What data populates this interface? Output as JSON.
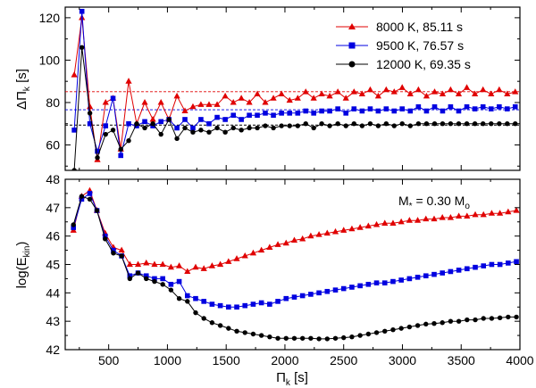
{
  "chart_data": [
    {
      "type": "line",
      "panel": "top",
      "ylabel": "ΔΠk [s]",
      "ylabel_main": "ΔΠ",
      "ylabel_sub": "k",
      "ylabel_unit": " [s]",
      "xlim": [
        130,
        4000
      ],
      "ylim": [
        48,
        125
      ],
      "yticks": [
        60,
        80,
        100,
        120
      ],
      "x": [
        207,
        272,
        340,
        404,
        474,
        537,
        603,
        670,
        738,
        807,
        876,
        945,
        1013,
        1081,
        1149,
        1217,
        1285,
        1354,
        1423,
        1492,
        1561,
        1629,
        1697,
        1765,
        1833,
        1902,
        1971,
        2040,
        2109,
        2177,
        2245,
        2313,
        2381,
        2450,
        2519,
        2588,
        2657,
        2726,
        2794,
        2862,
        2930,
        2998,
        3067,
        3136,
        3205,
        3274,
        3342,
        3410,
        3479,
        3548,
        3617,
        3686,
        3755,
        3824,
        3892,
        3960
      ],
      "series": [
        {
          "name": "8000 K, 85.11 s",
          "legend_label": "8000 K, 85.11 s",
          "color": "#e00000",
          "marker": "triangle",
          "mean": 85.11,
          "values": [
            93,
            120,
            78,
            53,
            80,
            82,
            58,
            90,
            70,
            80,
            72,
            80,
            72,
            83,
            76,
            78,
            79,
            79,
            79,
            83,
            80,
            82,
            80,
            84,
            80,
            82,
            84,
            81,
            82,
            85,
            82,
            84,
            83,
            85,
            82,
            85,
            84,
            86,
            83,
            86,
            85,
            87,
            84,
            86,
            83,
            85,
            84,
            86,
            84,
            87,
            84,
            86,
            84,
            86,
            84,
            85
          ]
        },
        {
          "name": "9500 K, 76.57 s",
          "legend_label": "9500 K, 76.57 s",
          "color": "#0000e0",
          "marker": "square",
          "mean": 76.57,
          "values": [
            67,
            123,
            70,
            57,
            69,
            82,
            55,
            70,
            69,
            71,
            69,
            71,
            72,
            68,
            72,
            68,
            72,
            70,
            73,
            72,
            74,
            72,
            74,
            74,
            75,
            74,
            75,
            75,
            75,
            76,
            75,
            76,
            76,
            77,
            75,
            77,
            76,
            77,
            76,
            77,
            76,
            77,
            76,
            78,
            76,
            78,
            76,
            78,
            76,
            78,
            77,
            78,
            77,
            78,
            77,
            78
          ]
        },
        {
          "name": "12000 K, 69.35 s",
          "legend_label": "12000 K, 69.35 s",
          "color": "#000000",
          "marker": "circle",
          "mean": 69.35,
          "values": [
            48,
            106,
            75,
            54,
            65,
            67,
            58,
            62,
            70,
            68,
            70,
            65,
            72,
            63,
            68,
            66,
            67,
            66,
            68,
            66,
            68,
            67,
            68,
            68,
            69,
            68,
            69,
            69,
            69,
            70,
            68,
            70,
            69,
            70,
            69,
            70,
            69,
            70,
            69,
            70,
            69,
            70,
            69,
            70,
            70,
            70,
            70,
            70,
            70,
            70,
            70,
            70,
            70,
            70,
            70,
            70
          ]
        }
      ]
    },
    {
      "type": "line",
      "panel": "bottom",
      "ylabel": "log(Ekin)",
      "ylabel_main": "log(E",
      "ylabel_sub": "kin",
      "ylabel_unit": ")",
      "xlabel": "Πk [s]",
      "xlabel_main": "Π",
      "xlabel_sub": "k",
      "xlabel_unit": " [s]",
      "xlim": [
        130,
        4000
      ],
      "ylim": [
        42,
        48
      ],
      "yticks": [
        42,
        43,
        44,
        45,
        46,
        47,
        48
      ],
      "xticks": [
        500,
        1000,
        1500,
        2000,
        2500,
        3000,
        3500,
        4000
      ],
      "annotation": "M* = 0.30 Mo",
      "annotation_main": "M",
      "annotation_sub1": "*",
      "annotation_mid": " = 0.30 M",
      "annotation_sub2": "o",
      "x": [
        200,
        270,
        339,
        400,
        470,
        540,
        610,
        680,
        750,
        820,
        890,
        960,
        1030,
        1100,
        1170,
        1240,
        1310,
        1380,
        1450,
        1520,
        1590,
        1660,
        1730,
        1800,
        1870,
        1940,
        2010,
        2080,
        2150,
        2220,
        2290,
        2360,
        2430,
        2500,
        2570,
        2640,
        2710,
        2780,
        2850,
        2920,
        2990,
        3060,
        3130,
        3200,
        3270,
        3340,
        3410,
        3480,
        3550,
        3620,
        3690,
        3760,
        3830,
        3900,
        3970
      ],
      "series": [
        {
          "name": "8000 K",
          "color": "#e00000",
          "marker": "triangle",
          "values": [
            46.2,
            47.4,
            47.6,
            46.9,
            46.1,
            45.6,
            45.5,
            45.0,
            45.0,
            45.05,
            45.0,
            45.0,
            44.9,
            44.95,
            44.75,
            44.9,
            44.85,
            44.95,
            45.0,
            45.1,
            45.2,
            45.3,
            45.4,
            45.5,
            45.6,
            45.7,
            45.75,
            45.85,
            45.9,
            46.0,
            46.05,
            46.1,
            46.15,
            46.2,
            46.25,
            46.3,
            46.35,
            46.4,
            46.45,
            46.45,
            46.5,
            46.55,
            46.55,
            46.6,
            46.6,
            46.65,
            46.65,
            46.7,
            46.7,
            46.75,
            46.75,
            46.8,
            46.8,
            46.85,
            46.9
          ]
        },
        {
          "name": "9500 K",
          "color": "#0000e0",
          "marker": "square",
          "values": [
            46.3,
            47.3,
            47.5,
            46.9,
            46.0,
            45.5,
            45.3,
            44.6,
            44.7,
            44.6,
            44.5,
            44.5,
            44.3,
            44.4,
            43.9,
            43.8,
            43.7,
            43.6,
            43.55,
            43.5,
            43.5,
            43.55,
            43.6,
            43.65,
            43.6,
            43.7,
            43.8,
            43.85,
            43.9,
            43.95,
            44.0,
            44.05,
            44.1,
            44.15,
            44.2,
            44.25,
            44.3,
            44.35,
            44.35,
            44.4,
            44.45,
            44.5,
            44.55,
            44.6,
            44.65,
            44.7,
            44.75,
            44.8,
            44.85,
            44.9,
            44.95,
            45.0,
            45.0,
            45.05,
            45.1
          ]
        },
        {
          "name": "12000 K",
          "color": "#000000",
          "marker": "circle",
          "values": [
            46.4,
            47.4,
            47.3,
            46.9,
            45.9,
            45.4,
            45.3,
            44.5,
            44.7,
            44.5,
            44.4,
            44.3,
            44.1,
            43.8,
            43.7,
            43.3,
            43.1,
            42.95,
            42.85,
            42.75,
            42.65,
            42.6,
            42.55,
            42.5,
            42.45,
            42.4,
            42.4,
            42.4,
            42.4,
            42.4,
            42.38,
            42.38,
            42.4,
            42.42,
            42.45,
            42.5,
            42.55,
            42.6,
            42.65,
            42.7,
            42.75,
            42.8,
            42.85,
            42.9,
            42.92,
            42.95,
            43.0,
            43.0,
            43.05,
            43.05,
            43.1,
            43.1,
            43.12,
            43.15,
            43.15
          ]
        }
      ]
    }
  ]
}
